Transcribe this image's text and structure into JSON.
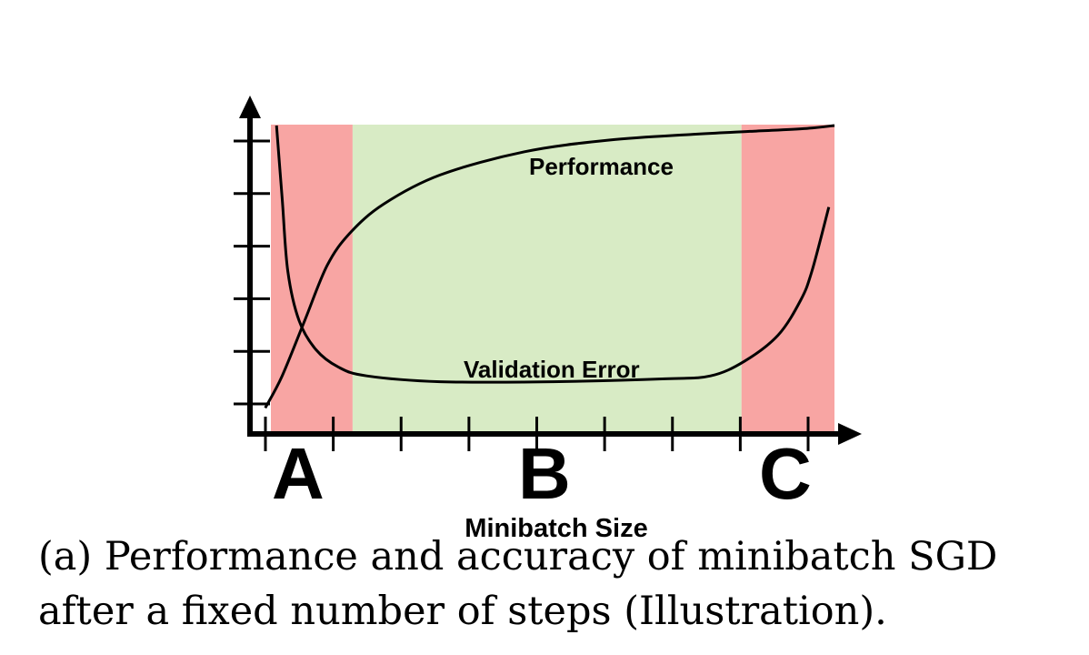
{
  "chart_data": {
    "type": "line",
    "title": "",
    "xlabel": "Minibatch Size",
    "ylabel": "",
    "xlim": [
      0,
      1
    ],
    "ylim": [
      0,
      1
    ],
    "grid": false,
    "regions": [
      {
        "label": "A",
        "x_start": 0.0,
        "x_end": 0.145,
        "color": "#f8a5a3"
      },
      {
        "label": "B",
        "x_start": 0.145,
        "x_end": 0.835,
        "color": "#d8ebc5"
      },
      {
        "label": "C",
        "x_start": 0.835,
        "x_end": 1.0,
        "color": "#f8a5a3"
      }
    ],
    "series": [
      {
        "name": "Performance",
        "x": [
          -0.01,
          0.02,
          0.06,
          0.1,
          0.14,
          0.2,
          0.3,
          0.45,
          0.6,
          0.75,
          0.85,
          0.95,
          1.0
        ],
        "values": [
          0.03,
          0.14,
          0.33,
          0.52,
          0.63,
          0.73,
          0.83,
          0.91,
          0.95,
          0.97,
          0.98,
          0.99,
          1.0
        ]
      },
      {
        "name": "Validation Error",
        "x": [
          0.01,
          0.02,
          0.03,
          0.05,
          0.08,
          0.12,
          0.17,
          0.3,
          0.5,
          0.7,
          0.78,
          0.84,
          0.9,
          0.94,
          0.96,
          0.99
        ],
        "values": [
          1.0,
          0.75,
          0.5,
          0.33,
          0.23,
          0.17,
          0.14,
          0.12,
          0.12,
          0.13,
          0.14,
          0.19,
          0.28,
          0.4,
          0.5,
          0.72
        ]
      }
    ],
    "x_ticks": 9,
    "y_ticks": 6
  },
  "caption": {
    "line1": "(a) Performance and accuracy of minibatch SGD",
    "line2": "after a fixed number of steps (Illustration)."
  }
}
